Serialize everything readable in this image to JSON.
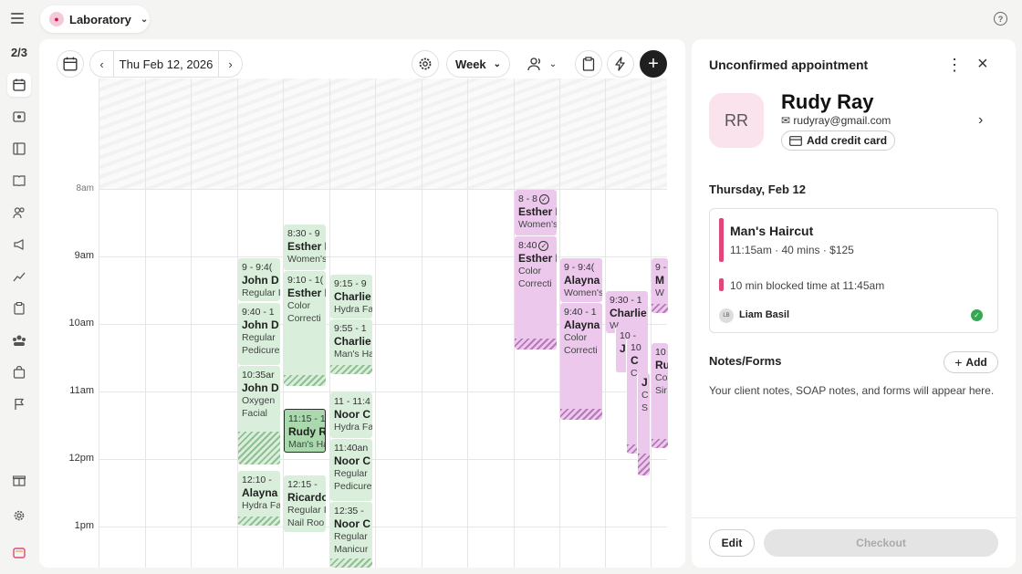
{
  "sidebar": {
    "counter": "2/3",
    "items": [
      {
        "icon": "calendar-icon"
      },
      {
        "icon": "money-icon"
      },
      {
        "icon": "ledger-icon"
      },
      {
        "icon": "book-icon"
      },
      {
        "icon": "clients-icon"
      },
      {
        "icon": "megaphone-icon"
      },
      {
        "icon": "chart-icon"
      },
      {
        "icon": "clipboard-icon"
      },
      {
        "icon": "team-icon"
      },
      {
        "icon": "bag-icon"
      },
      {
        "icon": "flag-icon"
      },
      {
        "icon": "gift-icon"
      },
      {
        "icon": "gear-icon"
      },
      {
        "icon": "app-icon"
      }
    ]
  },
  "location": {
    "name": "Laboratory"
  },
  "toolbar": {
    "date": "Thu Feb 12, 2026",
    "view": "Week"
  },
  "calendar": {
    "times": [
      "8am",
      "9am",
      "10am",
      "11am",
      "12pm",
      "1pm"
    ],
    "events": [
      {
        "time": "9 - 9:4(",
        "name": "John D",
        "service": "Regular I"
      },
      {
        "time": "9:40 - 1",
        "name": "John D",
        "service": "Regular",
        "service2": "Pedicure"
      },
      {
        "time": "10:35ar",
        "name": "John D",
        "service": "Oxygen",
        "service2": "Facial"
      },
      {
        "time": "12:10 -",
        "name": "Alayna",
        "service": "Hydra Fa"
      },
      {
        "time": "8:30 - 9",
        "name": "Esther I",
        "service": "Women's"
      },
      {
        "time": "9:10 - 1(",
        "name": "Esther I",
        "service": "Color",
        "service2": "Correcti"
      },
      {
        "time": "11:15 - 1",
        "name": "Rudy Ra",
        "service": "Man's Ha"
      },
      {
        "time": "12:15 -",
        "name": "Ricardo",
        "service": "Regular I",
        "service2": "Nail Roo"
      },
      {
        "time": "9:15 - 9",
        "name": "Charlie",
        "service": "Hydra Fa"
      },
      {
        "time": "9:55 - 1",
        "name": "Charlie",
        "service": "Man's Ha"
      },
      {
        "time": "11 - 11:4",
        "name": "Noor C",
        "service": "Hydra Fa"
      },
      {
        "time": "11:40an",
        "name": "Noor C",
        "service": "Regular",
        "service2": "Pedicure"
      },
      {
        "time": "12:35 -",
        "name": "Noor C",
        "service": "Regular",
        "service2": "Manicur"
      },
      {
        "time": "8 - 8",
        "name": "Esther I",
        "service": "Women's"
      },
      {
        "time": "8:40",
        "name": "Esther I",
        "service": "Color",
        "service2": "Correcti"
      },
      {
        "time": "9 - 9:4(",
        "name": "Alayna",
        "service": "Women's"
      },
      {
        "time": "9:40 - 1",
        "name": "Alayna",
        "service": "Color",
        "service2": "Correcti"
      },
      {
        "time": "9:30 - 1",
        "name": "Charlie",
        "service": "W"
      },
      {
        "time": "10 -",
        "name": "J"
      },
      {
        "time": "10",
        "name": "C",
        "service": "C"
      },
      {
        "time": "",
        "name": "J",
        "service": "C",
        "service2": "S"
      },
      {
        "time": "9 -",
        "name": "M",
        "service": "W"
      },
      {
        "time": "10",
        "name": "Ru",
        "service": "Co",
        "service2": "Sir"
      }
    ]
  },
  "panel": {
    "title": "Unconfirmed appointment",
    "client": {
      "initials": "RR",
      "name": "Rudy Ray",
      "email": "rudyray@gmail.com",
      "add_card": "Add credit card"
    },
    "date": "Thursday, Feb 12",
    "service": {
      "name": "Man's Haircut",
      "details": "11:15am · 40 mins · $125",
      "blocked": "10 min blocked time at 11:45am",
      "staff_initials": "LB",
      "staff": "Liam Basil"
    },
    "notes": {
      "title": "Notes/Forms",
      "add": "Add",
      "empty": "Your client notes, SOAP notes, and forms will appear here."
    },
    "edit": "Edit",
    "checkout": "Checkout"
  },
  "colors": {
    "green_event": "#d9efdb",
    "purple_event": "#ecc9ec",
    "selected_event": "#a9d9ad",
    "accent_pink": "#e0467a",
    "confirmed": "#34a853"
  }
}
